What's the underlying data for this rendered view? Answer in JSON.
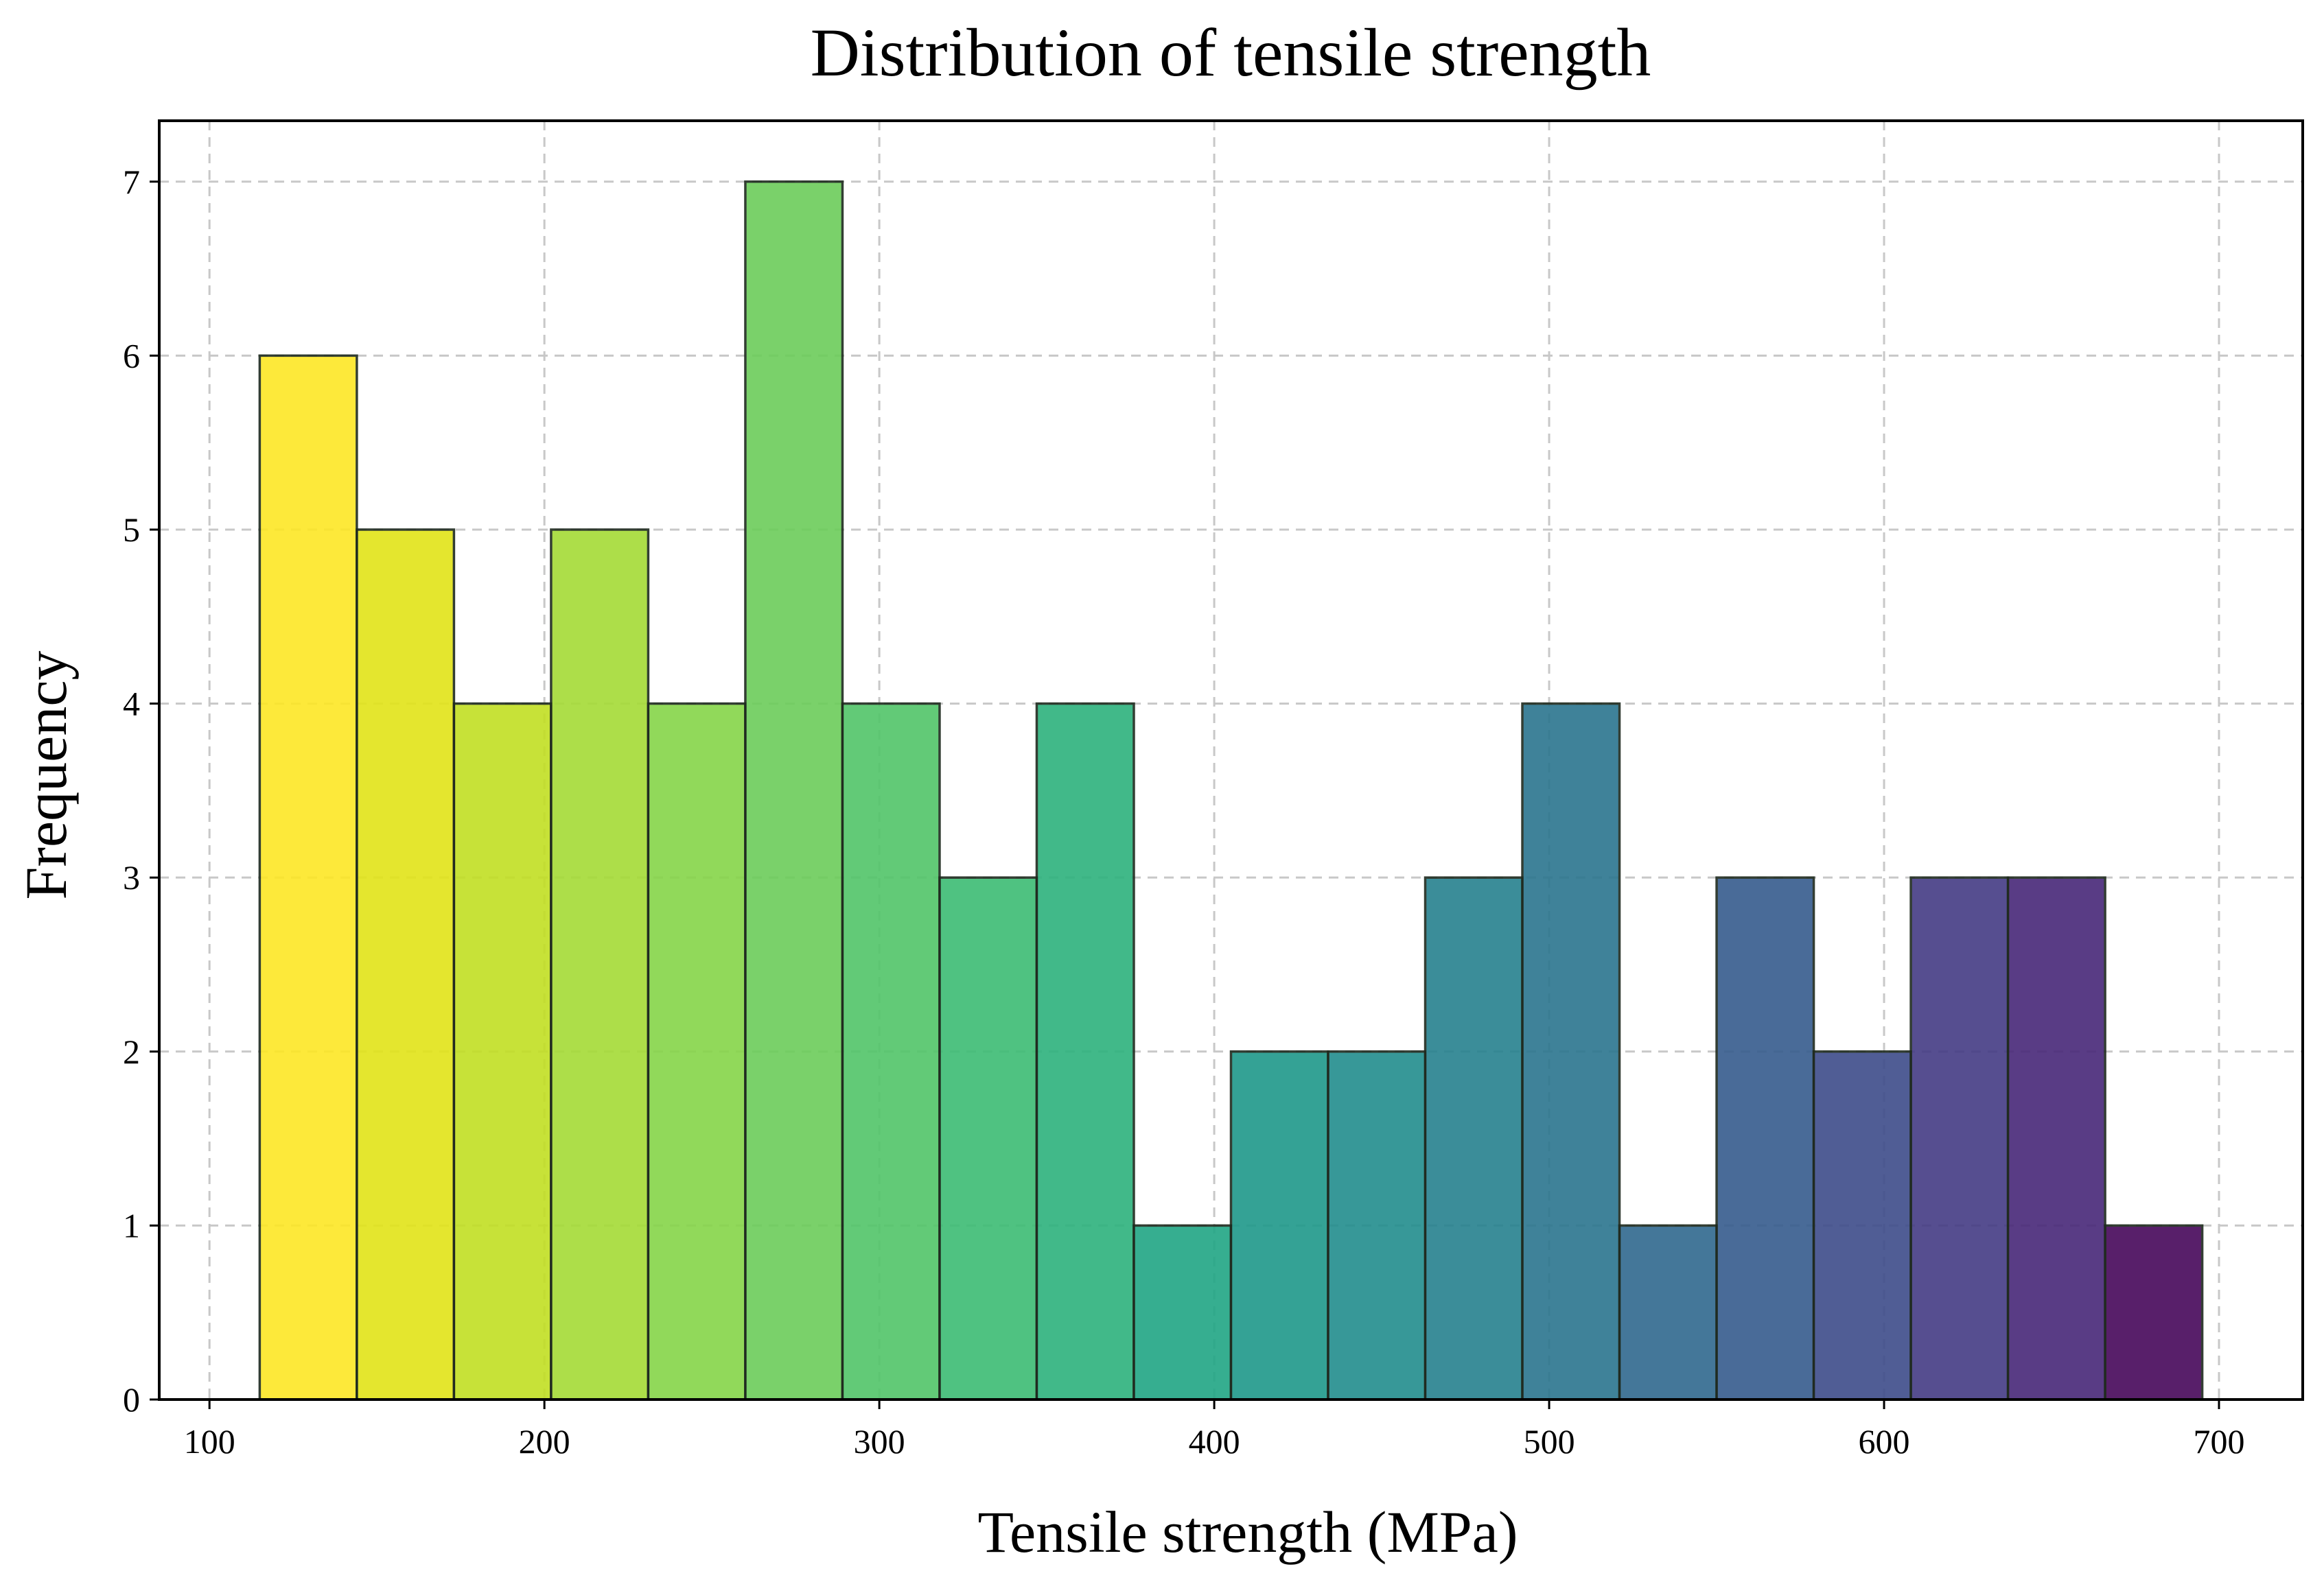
{
  "chart_data": {
    "type": "bar",
    "title": "Distribution of tensile strength",
    "xlabel": "Tensile strength (MPa)",
    "ylabel": "Frequency",
    "xlim": [
      85,
      725
    ],
    "ylim": [
      0,
      7.35
    ],
    "xticks": [
      100,
      200,
      300,
      400,
      500,
      600,
      700
    ],
    "yticks": [
      0,
      1,
      2,
      3,
      4,
      5,
      6,
      7
    ],
    "grid": true,
    "bin_edges": [
      115,
      144,
      173,
      202,
      231,
      260,
      289,
      318,
      347,
      376,
      405,
      434,
      463,
      492,
      521,
      550,
      579,
      608,
      637,
      666,
      695
    ],
    "values": [
      6,
      5,
      4,
      5,
      4,
      7,
      4,
      3,
      4,
      1,
      2,
      2,
      3,
      4,
      1,
      3,
      2,
      3,
      3,
      1
    ],
    "colors": [
      "#fde725",
      "#e2e418",
      "#c2df23",
      "#a5db36",
      "#86d549",
      "#6ccd5a",
      "#52c569",
      "#3dbc74",
      "#2db27d",
      "#21a685",
      "#1f998a",
      "#228d8d",
      "#26818e",
      "#2b758e",
      "#30698e",
      "#365c8d",
      "#3e4c8a",
      "#443b84",
      "#482878",
      "#46075a"
    ]
  }
}
